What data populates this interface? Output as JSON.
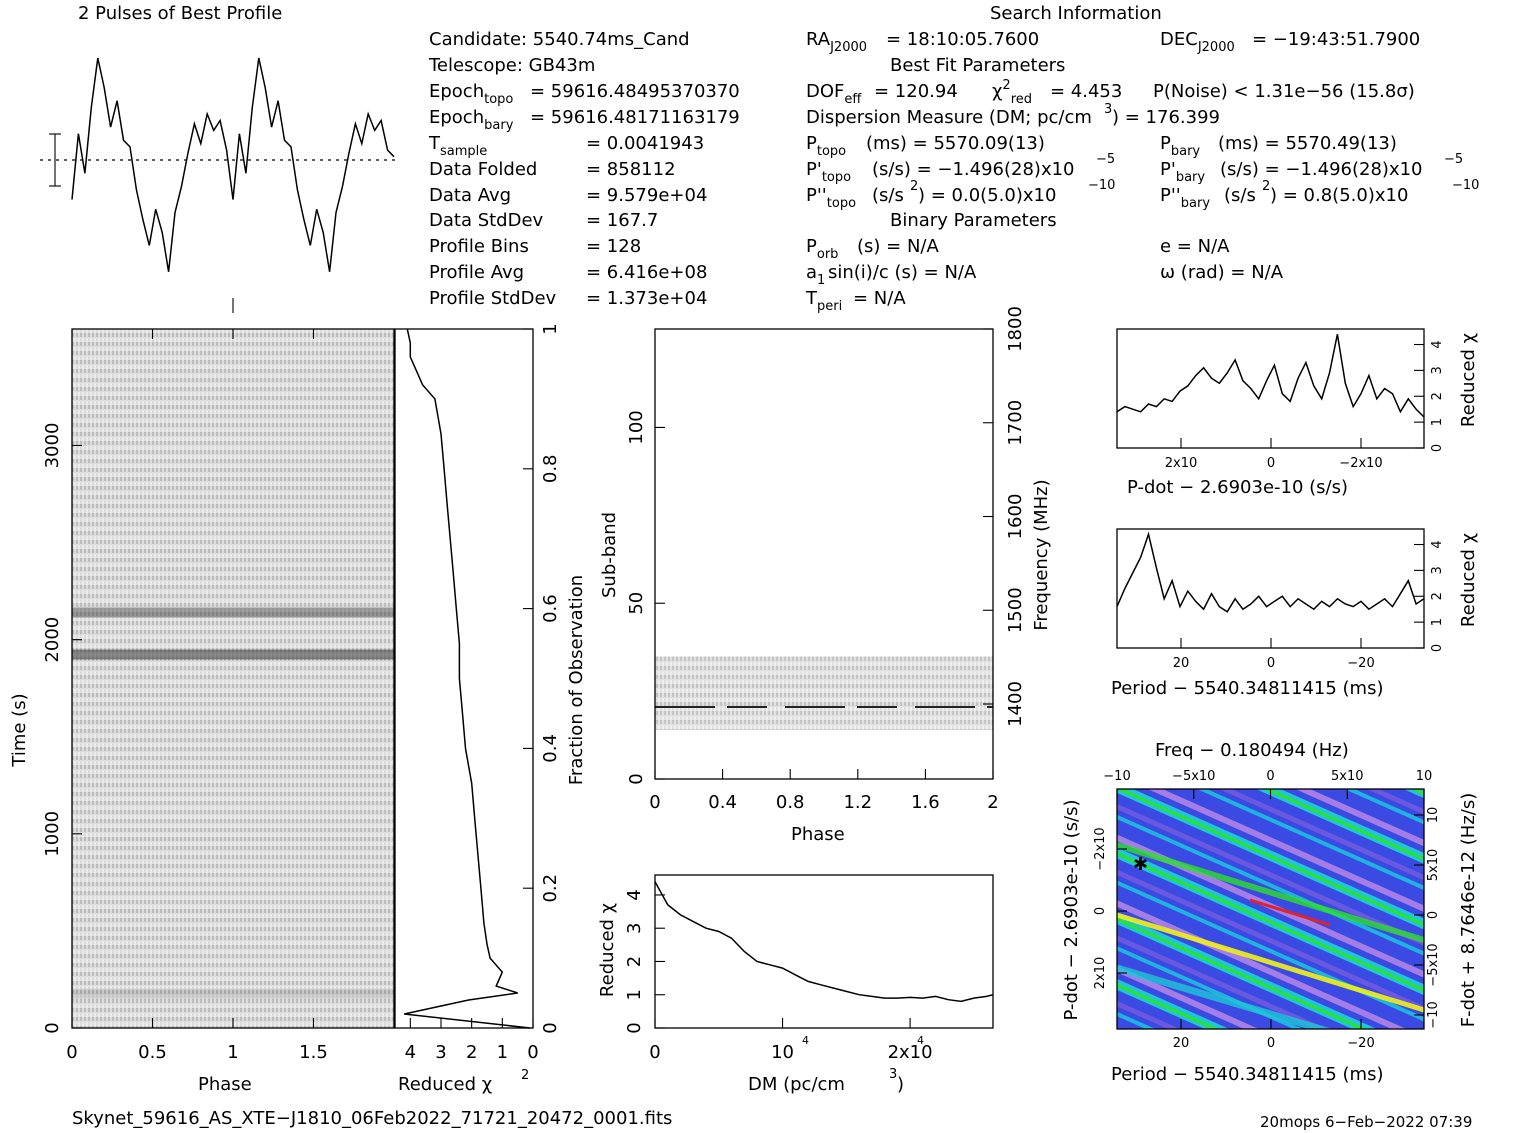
{
  "header": {
    "profile_title": "2 Pulses of Best Profile",
    "search_title": "Search Information",
    "best_fit_title": "Best Fit Parameters",
    "binary_title": "Binary Parameters"
  },
  "info": {
    "candidate": "Candidate:  5540.74ms_Cand",
    "telescope": "Telescope:  GB43m",
    "epoch_topo": "= 59616.48495370370",
    "epoch_bary": "= 59616.48171163179",
    "t_sample": "=   0.0041943",
    "data_folded_label": "Data Folded",
    "data_folded": "=   858112",
    "data_avg_label": "Data Avg",
    "data_avg": "=   9.579e+04",
    "data_stddev_label": "Data StdDev",
    "data_stddev": "=   167.7",
    "profile_bins_label": "Profile Bins",
    "profile_bins": "=   128",
    "profile_avg_label": "Profile Avg",
    "profile_avg": "=   6.416e+08",
    "profile_stddev_label": "Profile StdDev",
    "profile_stddev": "=   1.373e+04"
  },
  "search": {
    "ra": "= 18:10:05.7600",
    "dec": "= −19:43:51.7900",
    "dof": "= 120.94",
    "chi2": "= 4.453",
    "pnoise": "P(Noise) < 1.31e−56  (15.8σ)",
    "dm": "Dispersion Measure (DM; pc/cm",
    "dm_val": ") = 176.399",
    "p_topo": "(ms) =  5570.09(13)",
    "p_bary": "(ms) =  5570.49(13)",
    "pd_topo": "(s/s) = −1.496(28)x10",
    "pd_bary": "(s/s) = −1.496(28)x10",
    "pdd_topo": "(s/s",
    "pdd_topo_val": ") = 0.0(5.0)x10",
    "pdd_bary": "(s/s",
    "pdd_bary_val": ") =  0.8(5.0)x10",
    "porb": "(s) = N/A",
    "ecc": "e = N/A",
    "asini": "sin(i)/c (s) = N/A",
    "omega": "ω (rad) = N/A",
    "tperi": "= N/A"
  },
  "footer": {
    "filename": "Skynet_59616_AS_XTE−J1810_06Feb2022_71721_20472_0001.fits",
    "stamp": "20mops  6−Feb−2022 07:39"
  },
  "chart_data": [
    {
      "type": "line",
      "name": "profile",
      "title": "2 Pulses of Best Profile",
      "x": [
        0.0,
        0.04,
        0.08,
        0.12,
        0.16,
        0.2,
        0.24,
        0.28,
        0.32,
        0.36,
        0.4,
        0.44,
        0.48,
        0.52,
        0.56,
        0.6,
        0.64,
        0.68,
        0.72,
        0.76,
        0.8,
        0.84,
        0.88,
        0.92,
        0.96,
        1.0,
        1.04,
        1.08,
        1.12,
        1.16,
        1.2,
        1.24,
        1.28,
        1.32,
        1.36,
        1.4,
        1.44,
        1.48,
        1.52,
        1.56,
        1.6,
        1.64,
        1.68,
        1.72,
        1.76,
        1.8,
        1.84,
        1.88,
        1.92,
        1.96,
        2.0
      ],
      "values": [
        -1.2,
        0.8,
        -0.4,
        1.6,
        3.1,
        2.2,
        1.0,
        1.8,
        0.6,
        0.4,
        -0.9,
        -1.8,
        -2.6,
        -1.5,
        -2.2,
        -3.4,
        -1.6,
        -0.8,
        0.2,
        1.1,
        0.5,
        1.4,
        0.9,
        1.2,
        0.3,
        -1.2,
        0.8,
        -0.4,
        1.6,
        3.1,
        2.2,
        1.0,
        1.8,
        0.6,
        0.4,
        -0.9,
        -1.8,
        -2.6,
        -1.5,
        -2.2,
        -3.4,
        -1.6,
        -0.8,
        0.2,
        1.1,
        0.5,
        1.4,
        0.9,
        1.2,
        0.3,
        0.1
      ]
    },
    {
      "type": "heatmap",
      "name": "time-phase",
      "xlabel": "Phase",
      "ylabel": "Time (s)",
      "x_ticks": [
        "0",
        "0.5",
        "1",
        "1.5"
      ],
      "y_ticks": [
        "0",
        "1000",
        "2000",
        "3000"
      ],
      "xlim": [
        0,
        2
      ],
      "ylim": [
        0,
        3600
      ]
    },
    {
      "type": "line",
      "name": "time-chi2",
      "xlabel": "Reduced χ",
      "ylabel": "Fraction of Observation",
      "x_ticks": [
        "4",
        "3",
        "2",
        "1",
        "0"
      ],
      "y_ticks": [
        "0",
        "0.2",
        "0.4",
        "0.6",
        "0.8",
        "1"
      ],
      "fraction": [
        0.0,
        0.02,
        0.04,
        0.05,
        0.06,
        0.08,
        0.1,
        0.12,
        0.15,
        0.2,
        0.25,
        0.3,
        0.35,
        0.4,
        0.45,
        0.5,
        0.55,
        0.6,
        0.65,
        0.7,
        0.75,
        0.8,
        0.85,
        0.9,
        0.92,
        0.94,
        0.96,
        0.98,
        1.0
      ],
      "chi2": [
        0.1,
        4.2,
        2.1,
        0.5,
        1.2,
        1.0,
        1.4,
        1.5,
        1.6,
        1.7,
        1.8,
        1.9,
        2.0,
        2.2,
        2.3,
        2.4,
        2.4,
        2.5,
        2.6,
        2.7,
        2.8,
        2.9,
        3.0,
        3.2,
        3.6,
        3.8,
        4.0,
        4.0,
        4.1
      ]
    },
    {
      "type": "heatmap",
      "name": "subband-phase",
      "xlabel": "Phase",
      "ylabel": "Sub-band",
      "y2label": "Frequency (MHz)",
      "x_ticks": [
        "0",
        "0.4",
        "0.8",
        "1.2",
        "1.6",
        "2"
      ],
      "y_ticks": [
        "0",
        "50",
        "100"
      ],
      "y2_ticks": [
        "1400",
        "1500",
        "1600",
        "1700",
        "1800"
      ],
      "xlim": [
        0,
        2
      ],
      "ylim": [
        0,
        128
      ]
    },
    {
      "type": "line",
      "name": "dm-chi2",
      "xlabel": "DM (pc/cm",
      "ylabel": "Reduced χ",
      "x_ticks": [
        "0",
        "10",
        "2x10"
      ],
      "y_ticks": [
        "0",
        "1",
        "2",
        "3",
        "4"
      ],
      "x": [
        0,
        1000,
        2000,
        3000,
        4000,
        5000,
        6000,
        7000,
        8000,
        9000,
        10000,
        11000,
        12000,
        13000,
        14000,
        15000,
        16000,
        17000,
        18000,
        19000,
        20000,
        21000,
        22000,
        23000,
        24000,
        25000,
        26000,
        26500
      ],
      "values": [
        4.4,
        3.7,
        3.4,
        3.2,
        3.0,
        2.9,
        2.7,
        2.3,
        2.0,
        1.9,
        1.8,
        1.6,
        1.4,
        1.3,
        1.2,
        1.1,
        1.0,
        0.95,
        0.9,
        0.9,
        0.92,
        0.9,
        0.95,
        0.85,
        0.8,
        0.9,
        0.95,
        1.0
      ],
      "xlim": [
        0,
        26500
      ],
      "ylim": [
        0,
        4.6
      ]
    },
    {
      "type": "line",
      "name": "pdot-chi2",
      "xlabel": "P-dot − 2.6903e-10 (s/s)",
      "ylabel": "Reduced χ",
      "x_ticks": [
        "2x10",
        "0",
        "−2x10"
      ],
      "y_ticks": [
        "0",
        "1",
        "2",
        "3",
        "4"
      ],
      "values": [
        1.4,
        1.6,
        1.5,
        1.4,
        1.7,
        1.6,
        1.9,
        1.8,
        2.2,
        2.4,
        2.8,
        3.1,
        2.7,
        2.5,
        2.9,
        3.4,
        2.6,
        2.3,
        1.9,
        2.6,
        3.2,
        2.1,
        1.8,
        2.7,
        3.3,
        2.4,
        1.9,
        2.9,
        4.4,
        2.5,
        1.6,
        2.1,
        2.8,
        1.9,
        2.3,
        2.1,
        1.4,
        1.9,
        1.5,
        1.2
      ],
      "ylim": [
        0,
        4.6
      ]
    },
    {
      "type": "line",
      "name": "period-chi2",
      "xlabel": "Period − 5540.34811415 (ms)",
      "ylabel": "Reduced χ",
      "x_ticks": [
        "20",
        "0",
        "−20"
      ],
      "y_ticks": [
        "0",
        "1",
        "2",
        "3",
        "4"
      ],
      "values": [
        1.6,
        2.3,
        2.9,
        3.5,
        4.4,
        3.1,
        1.9,
        2.6,
        1.6,
        2.2,
        1.8,
        1.5,
        2.1,
        1.6,
        1.4,
        1.9,
        1.5,
        1.7,
        2.0,
        1.6,
        1.8,
        2.0,
        1.6,
        1.9,
        1.7,
        1.5,
        1.8,
        1.6,
        1.9,
        1.7,
        1.6,
        1.8,
        1.5,
        1.7,
        1.9,
        1.6,
        2.1,
        2.6,
        1.7,
        1.9
      ],
      "ylim": [
        0,
        4.6
      ]
    },
    {
      "type": "heatmap",
      "name": "p-pdot",
      "title": "Freq − 0.180494 (Hz)",
      "xlabel": "Period − 5540.34811415 (ms)",
      "ylabel": "P-dot − 2.6903e-10 (s/s)",
      "y2label": "F-dot + 8.7646e-12 (Hz/s)",
      "x_ticks": [
        "20",
        "0",
        "−20"
      ],
      "top_ticks": [
        "−10",
        "−5x10",
        "0",
        "5x10",
        "10"
      ],
      "y_ticks": [
        "−2x10",
        "0",
        "2x10"
      ],
      "y2_ticks": [
        "10",
        "5x10",
        "0",
        "−5x10",
        "−10"
      ]
    }
  ],
  "colors": {
    "ink": "#000000",
    "pp_low": "#2a3bd8",
    "pp_mid": "#1fc6d8",
    "pp_high": "#2ee02e",
    "pp_peak": "#f2f21a",
    "pp_max": "#e52222",
    "pp_violet": "#a47ee6"
  }
}
